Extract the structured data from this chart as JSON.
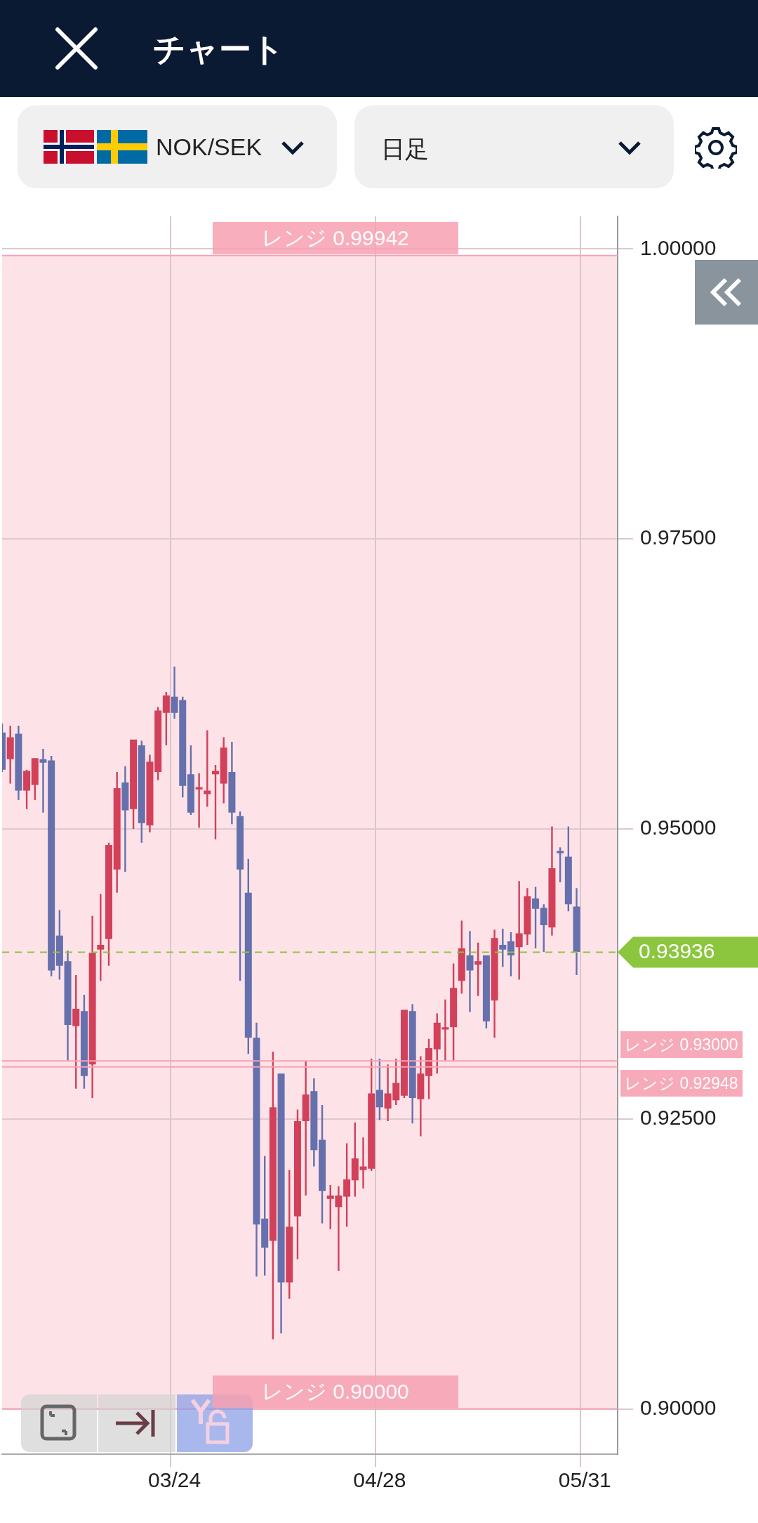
{
  "chart_data": {
    "type": "candlestick",
    "title": "チャート",
    "subtitle": "NOK/SEK",
    "annotations": [
      "日足"
    ],
    "categories": [
      null,
      null,
      null,
      null,
      null,
      null,
      null,
      null,
      null,
      null,
      null,
      null,
      null,
      null,
      null,
      null,
      null,
      null,
      null,
      null,
      null,
      "03/24",
      null,
      null,
      null,
      null,
      null,
      null,
      null,
      null,
      null,
      null,
      null,
      null,
      null,
      null,
      null,
      null,
      null,
      null,
      null,
      null,
      null,
      null,
      null,
      null,
      "04/28",
      null,
      null,
      null,
      null,
      null,
      null,
      null,
      null,
      null,
      null,
      null,
      null,
      null,
      null,
      null,
      null,
      null,
      null,
      null,
      null,
      null,
      null,
      null,
      null,
      "05/31",
      null,
      null,
      null,
      null
    ],
    "ohlc": [
      [
        0.9583,
        0.9591,
        0.9549,
        0.9551
      ],
      [
        0.956,
        0.9589,
        0.9539,
        0.9579
      ],
      [
        0.9582,
        0.9589,
        0.9525,
        0.9533
      ],
      [
        0.9533,
        0.9551,
        0.9517,
        0.955
      ],
      [
        0.9538,
        0.9561,
        0.9525,
        0.9561
      ],
      [
        0.956,
        0.9569,
        0.9514,
        0.9557
      ],
      [
        0.9559,
        0.9563,
        0.9373,
        0.9378
      ],
      [
        0.9408,
        0.943,
        0.937,
        0.9382
      ],
      [
        0.9386,
        0.9395,
        0.93,
        0.9331
      ],
      [
        0.933,
        0.9374,
        0.9276,
        0.9345
      ],
      [
        0.9343,
        0.9357,
        0.9276,
        0.9287
      ],
      [
        0.9297,
        0.9425,
        0.9268,
        0.9393
      ],
      [
        0.9396,
        0.9444,
        0.9369,
        0.94
      ],
      [
        0.9405,
        0.9488,
        0.9382,
        0.9486
      ],
      [
        0.9465,
        0.9549,
        0.9445,
        0.9535
      ],
      [
        0.954,
        0.9554,
        0.9463,
        0.9516
      ],
      [
        0.9517,
        0.9577,
        0.95,
        0.9577
      ],
      [
        0.9572,
        0.9576,
        0.9488,
        0.9505
      ],
      [
        0.9503,
        0.9564,
        0.9497,
        0.9558
      ],
      [
        0.9549,
        0.9605,
        0.9542,
        0.9602
      ],
      [
        0.96,
        0.9618,
        0.9572,
        0.9615
      ],
      [
        0.9614,
        0.964,
        0.9595,
        0.96
      ],
      [
        0.9611,
        0.9614,
        0.9527,
        0.9537
      ],
      [
        0.9547,
        0.9572,
        0.9512,
        0.9514
      ],
      [
        0.9534,
        0.9548,
        0.9501,
        0.9536
      ],
      [
        0.953,
        0.9585,
        0.9519,
        0.9533
      ],
      [
        0.9547,
        0.9555,
        0.9491,
        0.955
      ],
      [
        0.9539,
        0.9579,
        0.9522,
        0.957
      ],
      [
        0.9549,
        0.9575,
        0.9504,
        0.9514
      ],
      [
        0.9511,
        0.9515,
        0.9369,
        0.9465
      ],
      [
        0.9445,
        0.9474,
        0.9306,
        0.932
      ],
      [
        0.932,
        0.9333,
        0.9114,
        0.9159
      ],
      [
        0.9164,
        0.9218,
        0.9115,
        0.9139
      ],
      [
        0.9145,
        0.9308,
        0.906,
        0.926
      ],
      [
        0.9289,
        0.9289,
        0.9065,
        0.9109
      ],
      [
        0.9109,
        0.9206,
        0.9095,
        0.9157
      ],
      [
        0.9166,
        0.9258,
        0.9129,
        0.9248
      ],
      [
        0.9248,
        0.93,
        0.9184,
        0.9271
      ],
      [
        0.9274,
        0.9285,
        0.9209,
        0.9223
      ],
      [
        0.9232,
        0.9262,
        0.916,
        0.9188
      ],
      [
        0.9181,
        0.9193,
        0.9155,
        0.9184
      ],
      [
        0.9174,
        0.9192,
        0.9119,
        0.9184
      ],
      [
        0.9183,
        0.9229,
        0.9157,
        0.9198
      ],
      [
        0.9197,
        0.9247,
        0.9183,
        0.9216
      ],
      [
        0.9206,
        0.9234,
        0.919,
        0.9209
      ],
      [
        0.9207,
        0.9302,
        0.9205,
        0.9272
      ],
      [
        0.9275,
        0.9302,
        0.9249,
        0.926
      ],
      [
        0.9259,
        0.9297,
        0.9248,
        0.9272
      ],
      [
        0.9266,
        0.9302,
        0.9262,
        0.9281
      ],
      [
        0.927,
        0.9344,
        0.9268,
        0.9344
      ],
      [
        0.9343,
        0.9349,
        0.9246,
        0.9268
      ],
      [
        0.9267,
        0.9304,
        0.9235,
        0.9289
      ],
      [
        0.9287,
        0.9319,
        0.9267,
        0.9311
      ],
      [
        0.931,
        0.9341,
        0.9289,
        0.9333
      ],
      [
        0.9327,
        0.9353,
        0.93,
        0.9329
      ],
      [
        0.9329,
        0.9384,
        0.93,
        0.9363
      ],
      [
        0.9369,
        0.9421,
        0.9358,
        0.9397
      ],
      [
        0.9391,
        0.9412,
        0.9342,
        0.9378
      ],
      [
        0.9383,
        0.9402,
        0.9356,
        0.9386
      ],
      [
        0.9391,
        0.9391,
        0.9328,
        0.9334
      ],
      [
        0.9352,
        0.9413,
        0.932,
        0.9406
      ],
      [
        0.94,
        0.9414,
        0.9381,
        0.9396
      ],
      [
        0.9403,
        0.9411,
        0.9373,
        0.9391
      ],
      [
        0.9398,
        0.9455,
        0.937,
        0.941
      ],
      [
        0.9409,
        0.9449,
        0.94,
        0.9442
      ],
      [
        0.944,
        0.945,
        0.9397,
        0.9431
      ],
      [
        0.9432,
        0.9435,
        0.9394,
        0.9417
      ],
      [
        0.9415,
        0.9502,
        0.9408,
        0.9466
      ],
      [
        0.9481,
        0.9484,
        0.9454,
        0.9479
      ],
      [
        0.9476,
        0.9502,
        0.9429,
        0.9435
      ],
      [
        0.9433,
        0.9449,
        0.9374,
        0.9394
      ],
      null,
      null,
      null,
      null,
      null
    ],
    "colors": [
      "#6570ad",
      "#d2405a",
      "#6570ad",
      "#d2405a",
      "#d2405a",
      "#6570ad",
      "#6570ad",
      "#6570ad",
      "#6570ad",
      "#d2405a",
      "#6570ad",
      "#d2405a",
      "#d2405a",
      "#d2405a",
      "#d2405a",
      "#6570ad",
      "#d2405a",
      "#6570ad",
      "#d2405a",
      "#d2405a",
      "#d2405a",
      "#6570ad",
      "#6570ad",
      "#6570ad",
      "#d2405a",
      "#d2405a",
      "#d2405a",
      "#d2405a",
      "#6570ad",
      "#6570ad",
      "#6570ad",
      "#6570ad",
      "#6570ad",
      "#d2405a",
      "#6570ad",
      "#d2405a",
      "#d2405a",
      "#d2405a",
      "#6570ad",
      "#6570ad",
      "#d2405a",
      "#d2405a",
      "#d2405a",
      "#d2405a",
      "#d2405a",
      "#d2405a",
      "#6570ad",
      "#d2405a",
      "#d2405a",
      "#d2405a",
      "#6570ad",
      "#d2405a",
      "#d2405a",
      "#d2405a",
      "#d2405a",
      "#d2405a",
      "#d2405a",
      "#6570ad",
      "#d2405a",
      "#6570ad",
      "#d2405a",
      "#6570ad",
      "#6570ad",
      "#d2405a",
      "#d2405a",
      "#6570ad",
      "#6570ad",
      "#d2405a",
      "#6570ad",
      "#6570ad",
      "#6570ad",
      null,
      null,
      null,
      null,
      null
    ],
    "ylim": [
      0.8961,
      1.0028
    ],
    "yticks": [
      {
        "value": 0.9,
        "label": "0.90000"
      },
      {
        "value": 0.925,
        "label": "0.92500"
      },
      {
        "value": 0.95,
        "label": "0.95000"
      },
      {
        "value": 0.975,
        "label": "0.97500"
      },
      {
        "value": 1.0,
        "label": "1.00000"
      }
    ],
    "grid": true,
    "bands": [
      {
        "axis": "y",
        "from": 0.9,
        "to": 0.99942,
        "color": "#fde3e8"
      }
    ],
    "ref_lines": [
      {
        "axis": "y",
        "value": 0.99942,
        "label": "レンジ 0.99942",
        "color": "#f7a1b2"
      },
      {
        "axis": "y",
        "value": 0.92948,
        "label": "レンジ 0.92948",
        "color": "#f7a1b2"
      },
      {
        "axis": "y",
        "value": 0.93,
        "label": "レンジ 0.93000",
        "color": "#f7a1b2"
      },
      {
        "axis": "y",
        "value": 0.9,
        "label": "レンジ 0.90000",
        "color": "#f7a1b2"
      },
      {
        "axis": "y",
        "value": 0.93936,
        "label": "0.93936",
        "color": "#8cc63f",
        "line_style": "dashed"
      }
    ]
  }
}
